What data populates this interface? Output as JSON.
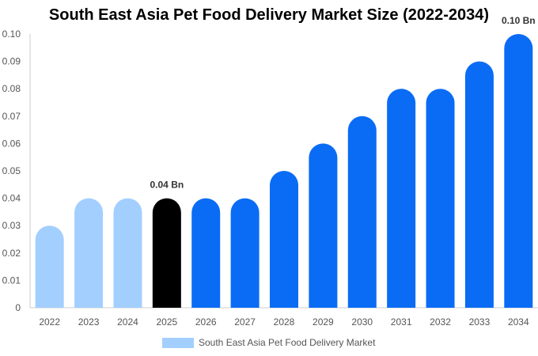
{
  "chart_data": {
    "type": "bar",
    "title": "South East Asia Pet Food Delivery Market Size (2022-2034)",
    "xlabel": "",
    "ylabel": "",
    "categories": [
      "2022",
      "2023",
      "2024",
      "2025",
      "2026",
      "2027",
      "2028",
      "2029",
      "2030",
      "2031",
      "2032",
      "2033",
      "2034"
    ],
    "series": [
      {
        "name": "South East Asia Pet Food Delivery Market",
        "values": [
          0.03,
          0.04,
          0.04,
          0.04,
          0.04,
          0.04,
          0.05,
          0.06,
          0.07,
          0.08,
          0.08,
          0.09,
          0.1
        ]
      }
    ],
    "ylim": [
      0,
      0.1
    ],
    "yticks": [
      "0",
      "0.01",
      "0.02",
      "0.03",
      "0.04",
      "0.05",
      "0.06",
      "0.07",
      "0.08",
      "0.09",
      "0.10"
    ],
    "data_labels": [
      {
        "category": "2025",
        "text": "0.04 Bn"
      },
      {
        "category": "2034",
        "text": "0.10 Bn"
      }
    ],
    "bar_colors": [
      "#a3cfff",
      "#a3cfff",
      "#a3cfff",
      "#000000",
      "#0a6cf5",
      "#0a6cf5",
      "#0a6cf5",
      "#0a6cf5",
      "#0a6cf5",
      "#0a6cf5",
      "#0a6cf5",
      "#0a6cf5",
      "#0a6cf5"
    ],
    "legend": {
      "label": "South East Asia Pet Food Delivery Market",
      "color": "#a3cfff",
      "position": "bottom-center"
    },
    "grid": false
  }
}
